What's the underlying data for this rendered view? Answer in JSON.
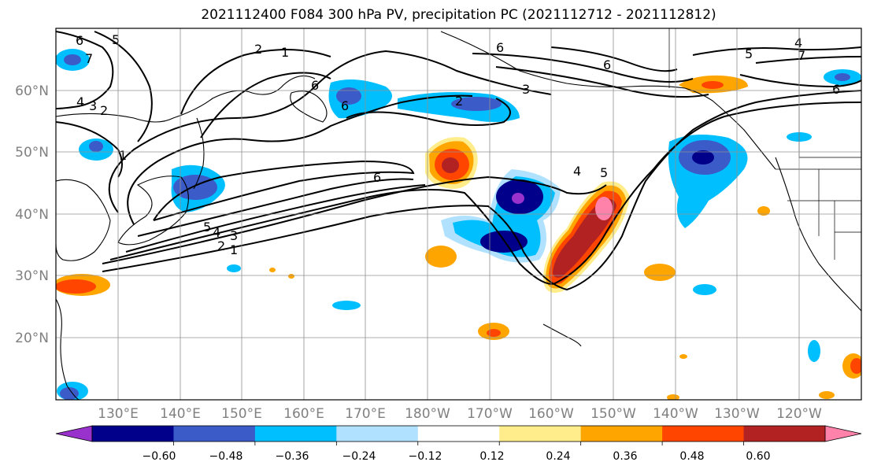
{
  "title": "2021112400 F084 300 hPa PV, precipitation PC (2021112712 - 2021112812)",
  "lat_labels": [
    "60°N",
    "50°N",
    "40°N",
    "30°N",
    "20°N"
  ],
  "lon_labels": [
    "130°E",
    "140°E",
    "150°E",
    "160°E",
    "170°E",
    "180°W",
    "170°W",
    "160°W",
    "150°W",
    "140°W",
    "130°W",
    "120°W"
  ],
  "colorbar": {
    "colors": [
      "#9932cc",
      "#00008b",
      "#3a5bc8",
      "#00bfff",
      "#b0e2ff",
      "#ffffff",
      "#ffec8b",
      "#ffa500",
      "#ff4500",
      "#b22222",
      "#ff82ab"
    ],
    "ticks": [
      "−0.60",
      "−0.48",
      "−0.36",
      "−0.24",
      "−0.12",
      "0.12",
      "0.24",
      "0.36",
      "0.48",
      "0.60"
    ]
  },
  "contour_labels": [
    "6",
    "5",
    "7",
    "4",
    "3",
    "2",
    "1",
    "2",
    "6",
    "5",
    "4",
    "3",
    "2",
    "1",
    "6",
    "2",
    "3",
    "6",
    "4",
    "5",
    "6",
    "5",
    "4",
    "6",
    "1",
    "7",
    "6"
  ]
}
